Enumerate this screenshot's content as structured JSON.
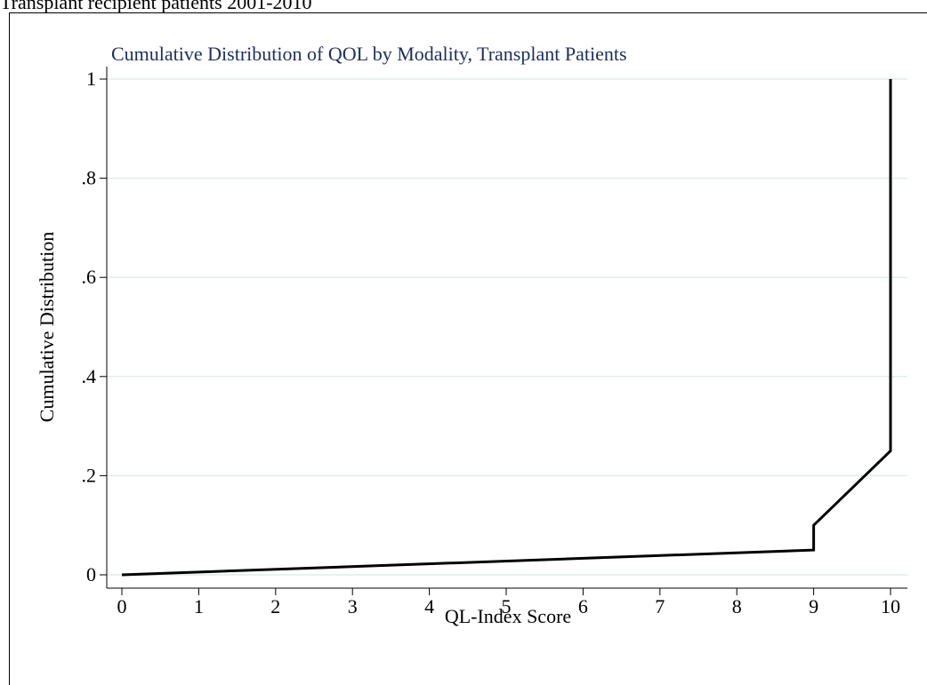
{
  "chart_data": {
    "type": "line",
    "figure_title": "Transplant recipient patients 2001-2010",
    "title": "Cumulative Distribution of QOL by Modality, Transplant Patients",
    "x_label": "QL-Index Score",
    "y_label": "Cumulative Distribution",
    "x": [
      0,
      9,
      9,
      10,
      10
    ],
    "series": [
      {
        "name": "Cumulative Distribution",
        "color": "#000000",
        "values": [
          0,
          0.05,
          0.1,
          0.25,
          1
        ]
      }
    ],
    "xlim": [
      0,
      10
    ],
    "ylim": [
      0,
      1
    ],
    "xticks": [
      0,
      1,
      2,
      3,
      4,
      5,
      6,
      7,
      8,
      9,
      10
    ],
    "yticks": [
      0,
      {
        "value": 0.2,
        "label": ".2"
      },
      {
        "value": 0.4,
        "label": ".4"
      },
      {
        "value": 0.6,
        "label": ".6"
      },
      {
        "value": 0.8,
        "label": ".8"
      },
      1
    ],
    "grid": true
  }
}
